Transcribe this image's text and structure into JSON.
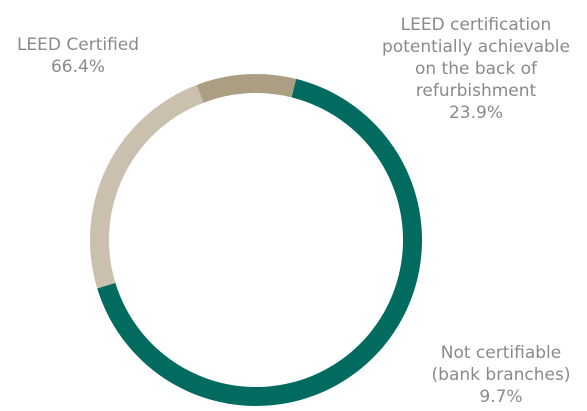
{
  "chart_data": {
    "type": "pie",
    "style": "donut",
    "categories": [
      "LEED Certified",
      "LEED certification potentially achievable on the back of refurbishment",
      "Not certifiable (bank branches)"
    ],
    "values": [
      66.4,
      23.9,
      9.7
    ],
    "value_labels": [
      "66.4%",
      "23.9%",
      "9.7%"
    ],
    "label_lines": [
      [
        "LEED Certified"
      ],
      [
        "LEED certification",
        "potentially achievable",
        "on the back of",
        "refurbishment"
      ],
      [
        "Not certifiable",
        "(bank branches)"
      ]
    ],
    "colors": [
      "#006b5e",
      "#cbbfae",
      "#ab9e82"
    ],
    "start_angle_deg": 14,
    "direction": "clockwise"
  }
}
